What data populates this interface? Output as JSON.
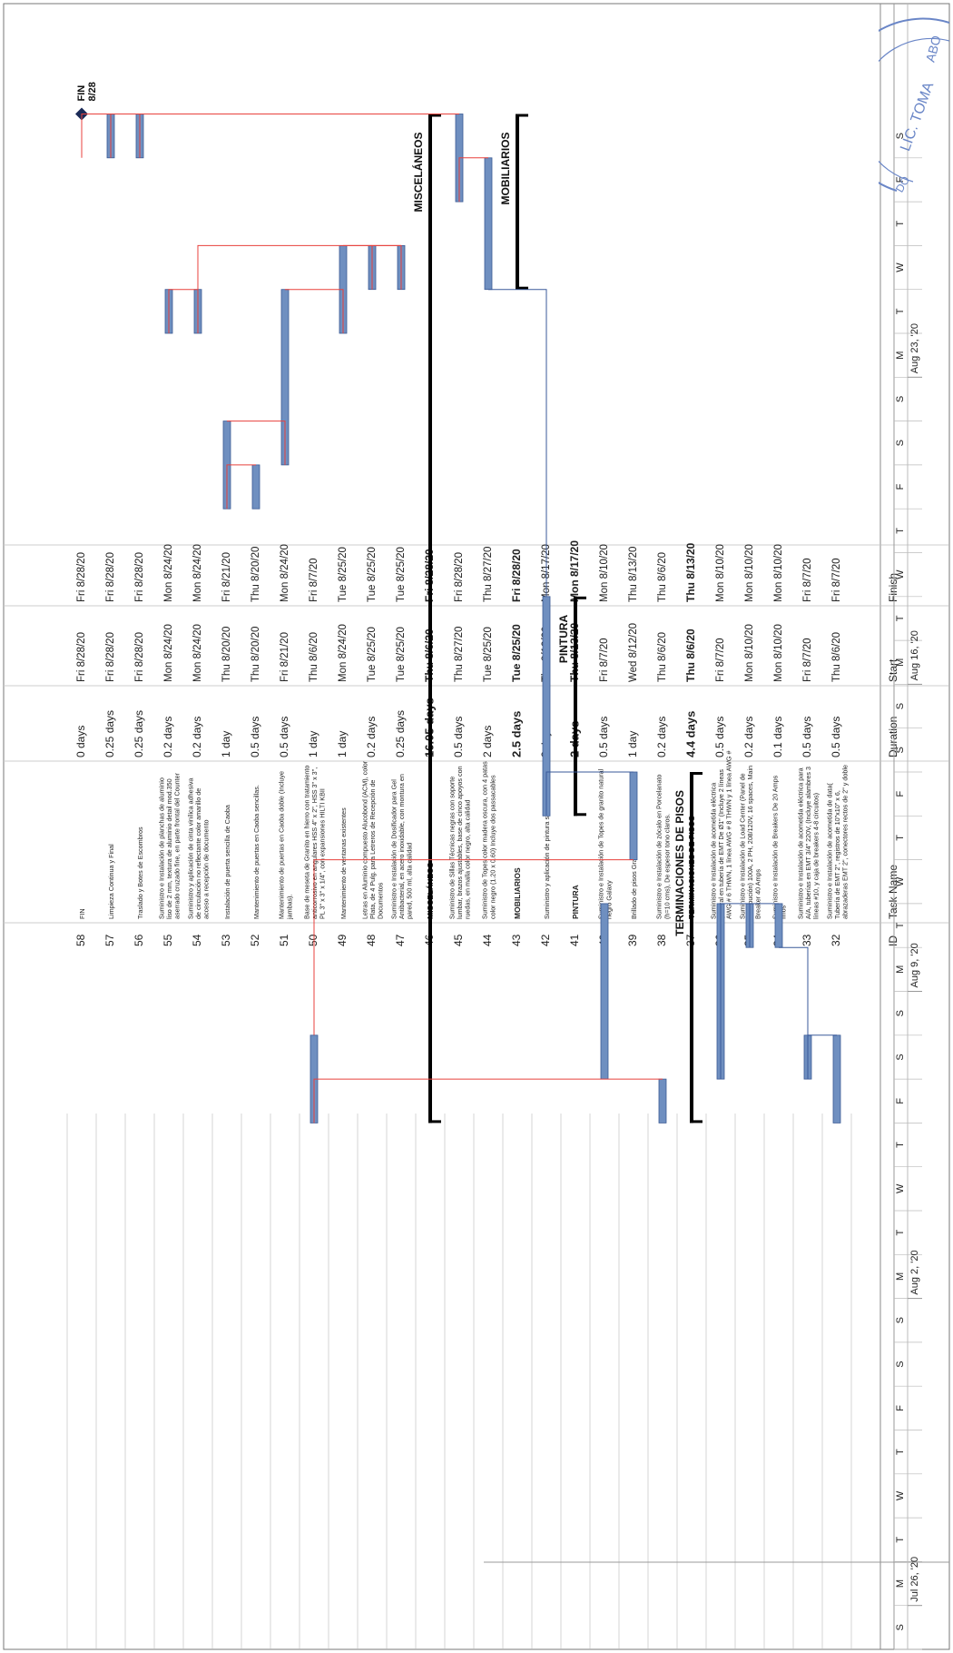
{
  "table": {
    "headers": {
      "id": "ID",
      "name": "Task Name",
      "duration": "Duration",
      "start": "Start",
      "finish": "Finish"
    },
    "rows": [
      {
        "id": "32",
        "name": "Suministro e Instalación de acometida de data( Tubería de EMT 2\", registros de 10\"x10\" x 6, abrazaderas EMT 2\", conectores rectos de 2\" y doble tubería en bx de 1\")",
        "duration": "0.5 days",
        "start": "Thu 8/6/20",
        "finish": "Fri 8/7/20",
        "bold": false
      },
      {
        "id": "33",
        "name": "Suministro e Instalación de acometida eléctrica para A/A, tuberías en EMT 3/4\" 220V, (Incluye alambres 3 líneas #10, y caja de breakers 4-8 circuitos)",
        "duration": "0.5 days",
        "start": "Fri 8/7/20",
        "finish": "Fri 8/7/20",
        "bold": false
      },
      {
        "id": "34",
        "name": "Suministro e Instalación de Breakers De 20 Amps finos",
        "duration": "0.1 days",
        "start": "Mon 8/10/20",
        "finish": "Mon 8/10/20",
        "bold": false
      },
      {
        "id": "35",
        "name": "Suministro e Instalación de Load Center (Panel de Distribución) 100A, 2 PH, 208/120V, 16 spaces, Main Breaker 40 Amps",
        "duration": "0.2 days",
        "start": "Mon 8/10/20",
        "finish": "Mon 8/10/20",
        "bold": false
      },
      {
        "id": "36",
        "name": "Suministro e Instalación de acometida eléctrica general en tubería de EMT De Ø1\" (Incluye 2 líneas AWG # 6 THWN, 1 línea AWG # 8 THWN y 1 línea AWG # 10",
        "duration": "0.5 days",
        "start": "Fri 8/7/20",
        "finish": "Mon 8/10/20",
        "bold": false
      },
      {
        "id": "37",
        "name": "TERMINACIONES DE PISOS",
        "duration": "4.4 days",
        "start": "Thu 8/6/20",
        "finish": "Thu 8/13/20",
        "bold": true
      },
      {
        "id": "38",
        "name": "Suministro e Instalación de zócalo en Porcelanato (h=10 cms), De espesor tono claros.",
        "duration": "0.2 days",
        "start": "Thu 8/6/20",
        "finish": "Thu 8/6/20",
        "bold": false
      },
      {
        "id": "39",
        "name": "Brillado de pisos Granito existentes",
        "duration": "1 day",
        "start": "Wed 8/12/20",
        "finish": "Thu 8/13/20",
        "bold": false
      },
      {
        "id": "40",
        "name": "Suministro e Instalación de Topes de granito natural negro Galaxy",
        "duration": "0.5 days",
        "start": "Fri 8/7/20",
        "finish": "Mon 8/10/20",
        "bold": false
      },
      {
        "id": "41",
        "name": "PINTURA",
        "duration": "2 days",
        "start": "Thu 8/13/20",
        "finish": "Mon 8/17/20",
        "bold": true
      },
      {
        "id": "42",
        "name": "Suministro y aplicación de pintura satinada",
        "duration": "2 days",
        "start": "Thu 8/13/20",
        "finish": "Mon 8/17/20",
        "bold": false
      },
      {
        "id": "43",
        "name": "MOBILIARIOS",
        "duration": "2.5 days",
        "start": "Tue 8/25/20",
        "finish": "Fri 8/28/20",
        "bold": true
      },
      {
        "id": "44",
        "name": "Suministro de Topes color madera oscura, con 4 patas color negro (1.20 x 0.60) Incluye dos passacables",
        "duration": "2 days",
        "start": "Tue 8/25/20",
        "finish": "Thu 8/27/20",
        "bold": false
      },
      {
        "id": "45",
        "name": "Suministro de Sillas Técnicas negras con soporte lumbar, brazos ajustables, base de cinco apoyos con ruedas, en malla color negro, alta calidad",
        "duration": "0.5 days",
        "start": "Thu 8/27/20",
        "finish": "Fri 8/28/20",
        "bold": false
      },
      {
        "id": "46",
        "name": "MISCELÁNEOS",
        "duration": "16.05 days",
        "start": "Thu 8/6/20",
        "finish": "Fri 8/28/20",
        "bold": true
      },
      {
        "id": "47",
        "name": "Suministro e Instalación de Dosificador para Gel Antibacterial, en acero inoxidable, con montura en pared, 500 ml, alta calidad",
        "duration": "0.25 days",
        "start": "Tue 8/25/20",
        "finish": "Tue 8/25/20",
        "bold": false
      },
      {
        "id": "48",
        "name": "Letras en Aluminio compuesto Alucobond (ACM), color Plata, de 4 Pulg. para Letreros de Recepción de Documentos",
        "duration": "0.2 days",
        "start": "Tue 8/25/20",
        "finish": "Tue 8/25/20",
        "bold": false
      },
      {
        "id": "49",
        "name": "Mantenimiento de ventanas existentes",
        "duration": "1 day",
        "start": "Mon 8/24/20",
        "finish": "Tue 8/25/20",
        "bold": false
      },
      {
        "id": "50",
        "name": "Base de meseta de Granito en hierro con tratamiento anticorrosivo en angulares HSS 4\" x 2\", HSS 3\" x 3\", PL 3\" x 3\" x 1/4\", con expansiones HILTI KBII redondo de 1/2\"",
        "duration": "1 day",
        "start": "Thu 8/6/20",
        "finish": "Fri 8/7/20",
        "bold": false
      },
      {
        "id": "51",
        "name": "Mantenimiento de puertas en Caoba doble (Incluye jambas).",
        "duration": "0.5 days",
        "start": "Fri 8/21/20",
        "finish": "Mon 8/24/20",
        "bold": false
      },
      {
        "id": "52",
        "name": "Mantenimiento de puertas en Caoba sencillas.",
        "duration": "0.5 days",
        "start": "Thu 8/20/20",
        "finish": "Thu 8/20/20",
        "bold": false
      },
      {
        "id": "53",
        "name": "Instalación de puerta sencilla de Caoba",
        "duration": "1 day",
        "start": "Thu 8/20/20",
        "finish": "Fri 8/21/20",
        "bold": false
      },
      {
        "id": "54",
        "name": "Suministro y aplicación de cinta vinílica adhesiva de circulación no reflectante color amarillo de acceso a recepción de documento",
        "duration": "0.2 days",
        "start": "Mon 8/24/20",
        "finish": "Mon 8/24/20",
        "bold": false
      },
      {
        "id": "55",
        "name": "Suministro e Instalación de planchas de aluminio liso de 2 mm, textura de aluminio detail mod.350 aserrado cruzado fine, en parte frontal del Counter de 30 cms",
        "duration": "0.2 days",
        "start": "Mon 8/24/20",
        "finish": "Mon 8/24/20",
        "bold": false
      },
      {
        "id": "56",
        "name": "Traslado y Botes de Escombros",
        "duration": "0.25 days",
        "start": "Fri 8/28/20",
        "finish": "Fri 8/28/20",
        "bold": false
      },
      {
        "id": "57",
        "name": "Limpieza Continua y Final",
        "duration": "0.25 days",
        "start": "Fri 8/28/20",
        "finish": "Fri 8/28/20",
        "bold": false
      },
      {
        "id": "58",
        "name": "FIN",
        "duration": "0 days",
        "start": "Fri 8/28/20",
        "finish": "Fri 8/28/20",
        "bold": false
      }
    ]
  },
  "timescale": {
    "weeks": [
      "Jul 26, '20",
      "Aug 2, '20",
      "Aug 9, '20",
      "Aug 16, '20",
      "Aug 23, '20"
    ],
    "days": [
      "S",
      "M",
      "T",
      "W",
      "T",
      "F",
      "S"
    ]
  },
  "chart_data": {
    "type": "gantt",
    "start_date": "2020-07-25",
    "end_date": "2020-08-29",
    "tasks": [
      {
        "id": "32",
        "start": "2020-08-06",
        "finish": "2020-08-07",
        "summary": false
      },
      {
        "id": "33",
        "start": "2020-08-07",
        "finish": "2020-08-07",
        "summary": false
      },
      {
        "id": "34",
        "start": "2020-08-10",
        "finish": "2020-08-10",
        "summary": false
      },
      {
        "id": "35",
        "start": "2020-08-10",
        "finish": "2020-08-10",
        "summary": false
      },
      {
        "id": "36",
        "start": "2020-08-07",
        "finish": "2020-08-10",
        "summary": false
      },
      {
        "id": "37",
        "start": "2020-08-06",
        "finish": "2020-08-13",
        "summary": true,
        "label": "TERMINACIONES DE PISOS"
      },
      {
        "id": "38",
        "start": "2020-08-06",
        "finish": "2020-08-06",
        "summary": false
      },
      {
        "id": "39",
        "start": "2020-08-12",
        "finish": "2020-08-13",
        "summary": false
      },
      {
        "id": "40",
        "start": "2020-08-07",
        "finish": "2020-08-10",
        "summary": false
      },
      {
        "id": "41",
        "start": "2020-08-13",
        "finish": "2020-08-17",
        "summary": true,
        "label": "PINTURA"
      },
      {
        "id": "42",
        "start": "2020-08-13",
        "finish": "2020-08-17",
        "summary": false
      },
      {
        "id": "43",
        "start": "2020-08-25",
        "finish": "2020-08-28",
        "summary": true,
        "label": "MOBILIARIOS"
      },
      {
        "id": "44",
        "start": "2020-08-25",
        "finish": "2020-08-27",
        "summary": false
      },
      {
        "id": "45",
        "start": "2020-08-27",
        "finish": "2020-08-28",
        "summary": false
      },
      {
        "id": "46",
        "start": "2020-08-06",
        "finish": "2020-08-28",
        "summary": true,
        "label": "MISCELÁNEOS"
      },
      {
        "id": "47",
        "start": "2020-08-25",
        "finish": "2020-08-25",
        "summary": false
      },
      {
        "id": "48",
        "start": "2020-08-25",
        "finish": "2020-08-25",
        "summary": false
      },
      {
        "id": "49",
        "start": "2020-08-24",
        "finish": "2020-08-25",
        "summary": false
      },
      {
        "id": "50",
        "start": "2020-08-06",
        "finish": "2020-08-07",
        "summary": false
      },
      {
        "id": "51",
        "start": "2020-08-21",
        "finish": "2020-08-24",
        "summary": false
      },
      {
        "id": "52",
        "start": "2020-08-20",
        "finish": "2020-08-20",
        "summary": false
      },
      {
        "id": "53",
        "start": "2020-08-20",
        "finish": "2020-08-21",
        "summary": false
      },
      {
        "id": "54",
        "start": "2020-08-24",
        "finish": "2020-08-24",
        "summary": false
      },
      {
        "id": "55",
        "start": "2020-08-24",
        "finish": "2020-08-24",
        "summary": false
      },
      {
        "id": "56",
        "start": "2020-08-28",
        "finish": "2020-08-28",
        "summary": false
      },
      {
        "id": "57",
        "start": "2020-08-28",
        "finish": "2020-08-28",
        "summary": false
      },
      {
        "id": "58",
        "start": "2020-08-28",
        "finish": "2020-08-28",
        "summary": false,
        "milestone": true,
        "label": "FIN",
        "date_label": "8/28"
      }
    ]
  },
  "stamp": {
    "line1": "LIC. TOMA",
    "line2": "ABO",
    "line3": "DO"
  },
  "colors": {
    "task_bar": "#6f8fc0",
    "milestone": "#1b2a57",
    "summary": "#000000",
    "link": "#e8413c",
    "link_blue": "#3a5a9a",
    "grid": "#888888"
  }
}
